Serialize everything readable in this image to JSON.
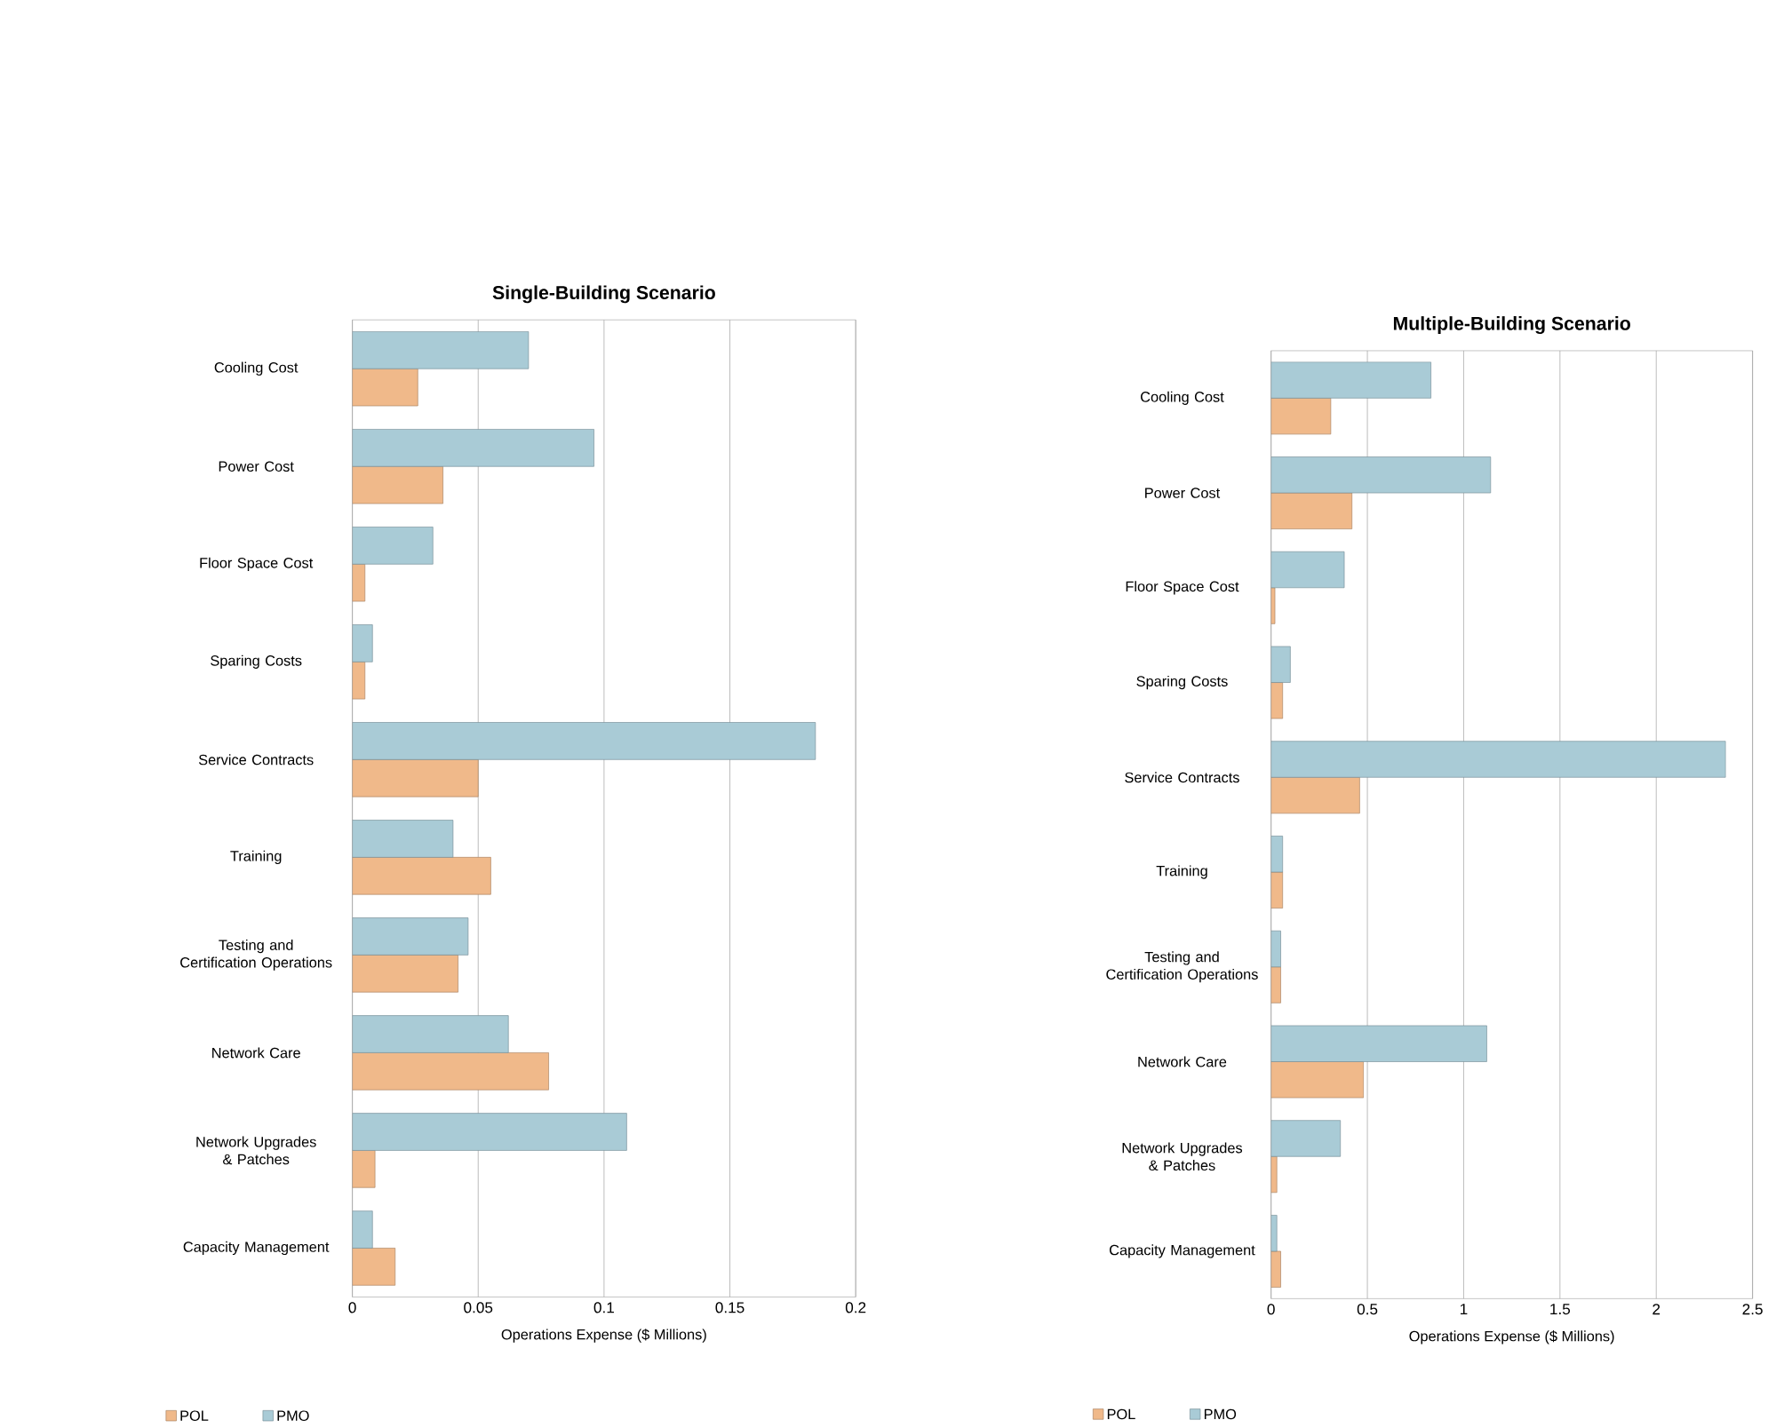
{
  "chart_data": [
    {
      "type": "bar",
      "orientation": "horizontal",
      "title": "Single-Building Scenario",
      "xlabel": "Operations Expense ($ Millions)",
      "categories": [
        "Cooling Cost",
        "Power Cost",
        "Floor Space Cost",
        "Sparing Costs",
        "Service Contracts",
        "Training",
        "Testing and Certification Operations",
        "Network Care",
        "Network Upgrades & Patches",
        "Capacity Management"
      ],
      "series": [
        {
          "name": "POL",
          "color": "#f0b98a",
          "values": [
            0.026,
            0.036,
            0.005,
            0.005,
            0.05,
            0.055,
            0.042,
            0.078,
            0.009,
            0.017
          ]
        },
        {
          "name": "PMO",
          "color": "#a9cbd6",
          "values": [
            0.07,
            0.096,
            0.032,
            0.008,
            0.184,
            0.04,
            0.046,
            0.062,
            0.109,
            0.008
          ]
        }
      ],
      "xlim": [
        0,
        0.2
      ],
      "xticks": [
        0,
        0.05,
        0.1,
        0.15,
        0.2
      ],
      "grid": "x",
      "legend": "bottom"
    },
    {
      "type": "bar",
      "orientation": "horizontal",
      "title": "Multiple-Building Scenario",
      "xlabel": "Operations Expense ($ Millions)",
      "categories": [
        "Cooling Cost",
        "Power Cost",
        "Floor Space Cost",
        "Sparing Costs",
        "Service Contracts",
        "Training",
        "Testing and Certification Operations",
        "Network Care",
        "Network Upgrades & Patches",
        "Capacity Management"
      ],
      "series": [
        {
          "name": "POL",
          "color": "#f0b98a",
          "values": [
            0.31,
            0.42,
            0.02,
            0.06,
            0.46,
            0.06,
            0.05,
            0.48,
            0.03,
            0.05
          ]
        },
        {
          "name": "PMO",
          "color": "#a9cbd6",
          "values": [
            0.83,
            1.14,
            0.38,
            0.1,
            2.36,
            0.06,
            0.05,
            1.12,
            0.36,
            0.03
          ]
        }
      ],
      "xlim": [
        0,
        2.5
      ],
      "xticks": [
        0,
        0.5,
        1,
        1.5,
        2,
        2.5
      ],
      "grid": "x",
      "legend": "bottom"
    }
  ]
}
